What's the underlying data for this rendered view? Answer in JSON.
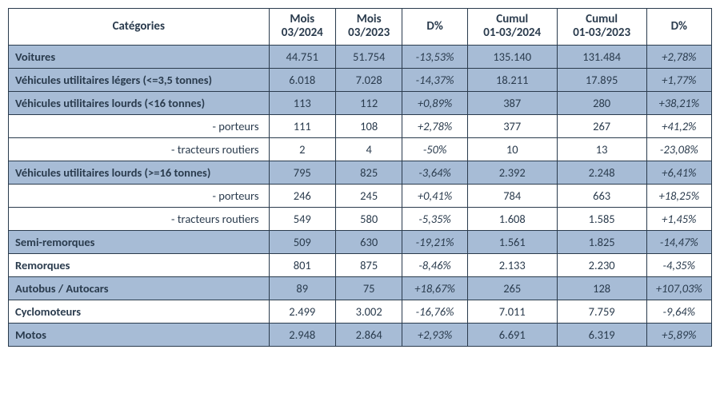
{
  "colors": {
    "border": "#2a3b4d",
    "text": "#2a3b4d",
    "header_bg": "#ffffff",
    "main_row_bg": "#a7bcd6",
    "sub_row_bg": "#ffffff"
  },
  "headers": {
    "cat": "Catégories",
    "m2024_l1": "Mois",
    "m2024_l2": "03/2024",
    "m2023_l1": "Mois",
    "m2023_l2": "03/2023",
    "d1": "D%",
    "c2024_l1": "Cumul",
    "c2024_l2": "01-03/2024",
    "c2023_l1": "Cumul",
    "c2023_l2": "01-03/2023",
    "d2": "D%"
  },
  "rows": [
    {
      "type": "main",
      "label": "Voitures",
      "m24": "44.751",
      "m23": "51.754",
      "d1": "-13,53%",
      "c24": "135.140",
      "c23": "131.484",
      "d2": "+2,78%"
    },
    {
      "type": "main",
      "label": "Véhicules utilitaires légers (<=3,5 tonnes)",
      "m24": "6.018",
      "m23": "7.028",
      "d1": "-14,37%",
      "c24": "18.211",
      "c23": "17.895",
      "d2": "+1,77%"
    },
    {
      "type": "main",
      "label": "Véhicules utilitaires lourds (<16 tonnes)",
      "m24": "113",
      "m23": "112",
      "d1": "+0,89%",
      "c24": "387",
      "c23": "280",
      "d2": "+38,21%"
    },
    {
      "type": "sub",
      "label": "- porteurs",
      "m24": "111",
      "m23": "108",
      "d1": "+2,78%",
      "c24": "377",
      "c23": "267",
      "d2": "+41,2%"
    },
    {
      "type": "sub",
      "label": "- tracteurs routiers",
      "m24": "2",
      "m23": "4",
      "d1": "-50%",
      "c24": "10",
      "c23": "13",
      "d2": "-23,08%"
    },
    {
      "type": "main",
      "label": "Véhicules utilitaires lourds (>=16 tonnes)",
      "m24": "795",
      "m23": "825",
      "d1": "-3,64%",
      "c24": "2.392",
      "c23": "2.248",
      "d2": "+6,41%"
    },
    {
      "type": "sub",
      "label": "- porteurs",
      "m24": "246",
      "m23": "245",
      "d1": "+0,41%",
      "c24": "784",
      "c23": "663",
      "d2": "+18,25%"
    },
    {
      "type": "sub",
      "label": "- tracteurs routiers",
      "m24": "549",
      "m23": "580",
      "d1": "-5,35%",
      "c24": "1.608",
      "c23": "1.585",
      "d2": "+1,45%"
    },
    {
      "type": "main",
      "label": "Semi-remorques",
      "m24": "509",
      "m23": "630",
      "d1": "-19,21%",
      "c24": "1.561",
      "c23": "1.825",
      "d2": "-14,47%"
    },
    {
      "type": "main_alt",
      "label": "Remorques",
      "m24": "801",
      "m23": "875",
      "d1": "-8,46%",
      "c24": "2.133",
      "c23": "2.230",
      "d2": "-4,35%"
    },
    {
      "type": "main",
      "label": "Autobus / Autocars",
      "m24": "89",
      "m23": "75",
      "d1": "+18,67%",
      "c24": "265",
      "c23": "128",
      "d2": "+107,03%"
    },
    {
      "type": "main_alt",
      "label": "Cyclomoteurs",
      "m24": "2.499",
      "m23": "3.002",
      "d1": "-16,76%",
      "c24": "7.011",
      "c23": "7.759",
      "d2": "-9,64%"
    },
    {
      "type": "main",
      "label": "Motos",
      "m24": "2.948",
      "m23": "2.864",
      "d1": "+2,93%",
      "c24": "6.691",
      "c23": "6.319",
      "d2": "+5,89%"
    }
  ]
}
